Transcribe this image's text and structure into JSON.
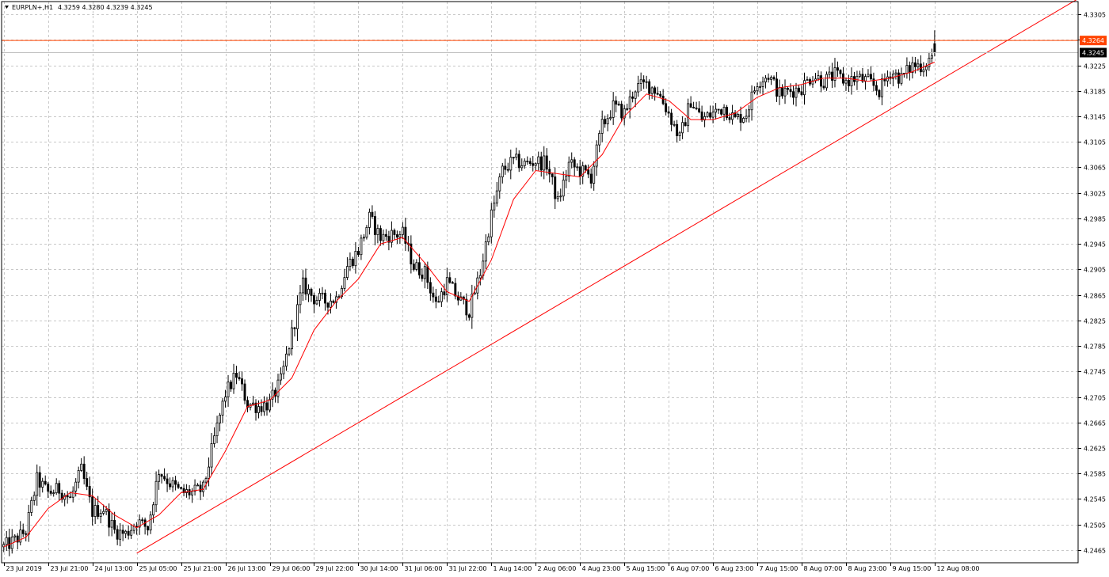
{
  "header": {
    "symbol_timeframe": "EURPLN+,H1",
    "ohlc": "4.3259 4.3280 4.3239 4.3245",
    "collapse_icon": "triangle-down-icon"
  },
  "colors": {
    "background": "#ffffff",
    "grid": "#c8c8c8",
    "candle": "#000000",
    "moving_average": "#ff0000",
    "trendline": "#ff0000",
    "alert_line": "#ff4500",
    "bid_line": "#c0c0c0"
  },
  "price_tags": {
    "alert": "4.3264",
    "bid": "4.3245"
  },
  "chart_data": {
    "type": "candlestick",
    "symbol": "EURPLN+",
    "timeframe": "H1",
    "ylim": [
      4.2445,
      4.3325
    ],
    "grid": true,
    "y_ticks": [
      "4.3305",
      "4.3265",
      "4.3225",
      "4.3185",
      "4.3145",
      "4.3105",
      "4.3065",
      "4.3025",
      "4.2985",
      "4.2945",
      "4.2905",
      "4.2865",
      "4.2825",
      "4.2785",
      "4.2745",
      "4.2705",
      "4.2665",
      "4.2625",
      "4.2585",
      "4.2545",
      "4.2505",
      "4.2465"
    ],
    "y_tick_values": [
      4.3305,
      4.3265,
      4.3225,
      4.3185,
      4.3145,
      4.3105,
      4.3065,
      4.3025,
      4.2985,
      4.2945,
      4.2905,
      4.2865,
      4.2825,
      4.2785,
      4.2745,
      4.2705,
      4.2665,
      4.2625,
      4.2585,
      4.2545,
      4.2505,
      4.2465
    ],
    "x_ticks": [
      "23 Jul 2019",
      "23 Jul 21:00",
      "24 Jul 13:00",
      "25 Jul 05:00",
      "25 Jul 21:00",
      "26 Jul 13:00",
      "29 Jul 06:00",
      "29 Jul 22:00",
      "30 Jul 14:00",
      "31 Jul 06:00",
      "31 Jul 22:00",
      "1 Aug 14:00",
      "2 Aug 06:00",
      "4 Aug 23:00",
      "5 Aug 15:00",
      "6 Aug 07:00",
      "6 Aug 23:00",
      "7 Aug 15:00",
      "8 Aug 07:00",
      "8 Aug 23:00",
      "9 Aug 15:00",
      "12 Aug 08:00"
    ],
    "x_tick_bar_index": [
      0,
      16,
      32,
      48,
      64,
      80,
      96,
      112,
      128,
      144,
      160,
      176,
      192,
      208,
      224,
      240,
      256,
      272,
      288,
      304,
      320,
      336
    ],
    "total_bar_slots": 388,
    "close_path": [
      [
        0,
        4.247
      ],
      [
        4,
        4.248
      ],
      [
        8,
        4.2495
      ],
      [
        12,
        4.2575
      ],
      [
        16,
        4.2555
      ],
      [
        20,
        4.256
      ],
      [
        24,
        4.2545
      ],
      [
        28,
        4.259
      ],
      [
        32,
        4.2525
      ],
      [
        36,
        4.253
      ],
      [
        40,
        4.2495
      ],
      [
        44,
        4.249
      ],
      [
        48,
        4.251
      ],
      [
        52,
        4.25
      ],
      [
        56,
        4.259
      ],
      [
        60,
        4.257
      ],
      [
        64,
        4.2555
      ],
      [
        68,
        4.2555
      ],
      [
        72,
        4.256
      ],
      [
        76,
        4.264
      ],
      [
        80,
        4.271
      ],
      [
        84,
        4.274
      ],
      [
        88,
        4.2695
      ],
      [
        92,
        4.269
      ],
      [
        96,
        4.2695
      ],
      [
        100,
        4.273
      ],
      [
        104,
        4.2805
      ],
      [
        108,
        4.288
      ],
      [
        112,
        4.286
      ],
      [
        116,
        4.2855
      ],
      [
        120,
        4.286
      ],
      [
        124,
        4.291
      ],
      [
        128,
        4.2935
      ],
      [
        132,
        4.2985
      ],
      [
        136,
        4.2955
      ],
      [
        140,
        4.296
      ],
      [
        144,
        4.296
      ],
      [
        148,
        4.291
      ],
      [
        152,
        4.29
      ],
      [
        156,
        4.285
      ],
      [
        160,
        4.2885
      ],
      [
        164,
        4.286
      ],
      [
        168,
        4.284
      ],
      [
        172,
        4.29
      ],
      [
        176,
        4.299
      ],
      [
        180,
        4.306
      ],
      [
        184,
        4.3075
      ],
      [
        188,
        4.307
      ],
      [
        192,
        4.3075
      ],
      [
        196,
        4.307
      ],
      [
        200,
        4.301
      ],
      [
        204,
        4.307
      ],
      [
        208,
        4.306
      ],
      [
        212,
        4.305
      ],
      [
        216,
        4.313
      ],
      [
        220,
        4.316
      ],
      [
        224,
        4.315
      ],
      [
        228,
        4.319
      ],
      [
        232,
        4.3195
      ],
      [
        236,
        4.3185
      ],
      [
        240,
        4.315
      ],
      [
        244,
        4.311
      ],
      [
        248,
        4.317
      ],
      [
        252,
        4.314
      ],
      [
        256,
        4.315
      ],
      [
        260,
        4.316
      ],
      [
        264,
        4.314
      ],
      [
        268,
        4.315
      ],
      [
        272,
        4.32
      ],
      [
        276,
        4.321
      ],
      [
        280,
        4.318
      ],
      [
        284,
        4.3185
      ],
      [
        288,
        4.319
      ],
      [
        292,
        4.321
      ],
      [
        296,
        4.32
      ],
      [
        300,
        4.321
      ],
      [
        304,
        4.32
      ],
      [
        308,
        4.3205
      ],
      [
        312,
        4.32
      ],
      [
        316,
        4.3185
      ],
      [
        320,
        4.3215
      ],
      [
        324,
        4.3205
      ],
      [
        328,
        4.3225
      ],
      [
        332,
        4.3225
      ],
      [
        336,
        4.3245
      ]
    ],
    "ma_path": [
      [
        0,
        4.247
      ],
      [
        8,
        4.2485
      ],
      [
        16,
        4.253
      ],
      [
        24,
        4.2555
      ],
      [
        32,
        4.255
      ],
      [
        40,
        4.252
      ],
      [
        48,
        4.25
      ],
      [
        56,
        4.252
      ],
      [
        64,
        4.2555
      ],
      [
        72,
        4.256
      ],
      [
        80,
        4.262
      ],
      [
        88,
        4.269
      ],
      [
        96,
        4.27
      ],
      [
        104,
        4.2735
      ],
      [
        112,
        4.281
      ],
      [
        120,
        4.2855
      ],
      [
        128,
        4.289
      ],
      [
        136,
        4.2945
      ],
      [
        144,
        4.2955
      ],
      [
        152,
        4.2915
      ],
      [
        160,
        4.287
      ],
      [
        168,
        4.2855
      ],
      [
        176,
        4.292
      ],
      [
        184,
        4.3015
      ],
      [
        192,
        4.306
      ],
      [
        200,
        4.3055
      ],
      [
        208,
        4.305
      ],
      [
        216,
        4.3085
      ],
      [
        224,
        4.3145
      ],
      [
        232,
        4.318
      ],
      [
        240,
        4.317
      ],
      [
        248,
        4.314
      ],
      [
        256,
        4.314
      ],
      [
        264,
        4.315
      ],
      [
        272,
        4.3175
      ],
      [
        280,
        4.319
      ],
      [
        288,
        4.3195
      ],
      [
        296,
        4.3205
      ],
      [
        304,
        4.3205
      ],
      [
        312,
        4.32
      ],
      [
        320,
        4.3205
      ],
      [
        328,
        4.3215
      ],
      [
        336,
        4.323
      ]
    ],
    "trendline": {
      "start": [
        48,
        4.246
      ],
      "end": [
        388,
        4.333
      ]
    },
    "alert_level": 4.3264,
    "bid_level": 4.3245
  }
}
